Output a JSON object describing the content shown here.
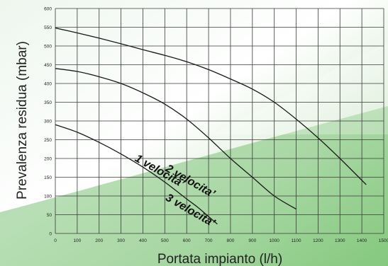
{
  "chart_data": {
    "type": "line",
    "xlabel": "Portata impianto (l/h)",
    "ylabel": "Prevalenza residua (mbar)",
    "xlim": [
      0,
      1500
    ],
    "ylim": [
      0,
      600
    ],
    "grid": true,
    "legend": "none",
    "x_ticks": [
      "0",
      "100",
      "200",
      "300",
      "400",
      "500",
      "600",
      "700",
      "800",
      "900",
      "1000",
      "1100",
      "1200",
      "1300",
      "1400",
      "1500"
    ],
    "y_ticks": [
      "0",
      "50",
      "100",
      "150",
      "200",
      "250",
      "300",
      "350",
      "400",
      "450",
      "500",
      "550",
      "600"
    ],
    "series": [
      {
        "name": "1 velocita’",
        "x": [
          0,
          100,
          200,
          300,
          400,
          500,
          600,
          650,
          700,
          740
        ],
        "y": [
          290,
          270,
          243,
          212,
          177,
          137,
          92,
          70,
          45,
          25
        ]
      },
      {
        "name": "2 velocita’",
        "x": [
          0,
          100,
          200,
          300,
          400,
          500,
          600,
          700,
          800,
          900,
          1000,
          1100
        ],
        "y": [
          440,
          432,
          418,
          400,
          375,
          345,
          305,
          255,
          200,
          150,
          100,
          65
        ]
      },
      {
        "name": "3 velocita’",
        "x": [
          0,
          100,
          200,
          300,
          400,
          500,
          600,
          700,
          800,
          900,
          1000,
          1100,
          1200,
          1300,
          1420
        ],
        "y": [
          548,
          535,
          521,
          506,
          490,
          475,
          458,
          437,
          412,
          385,
          350,
          305,
          255,
          200,
          130
        ]
      }
    ],
    "colors": {
      "curve": "#1a1a1a",
      "grid": "#3a3a3a",
      "band_green": "#6fbf6a",
      "band_light": "#ffffff"
    }
  }
}
